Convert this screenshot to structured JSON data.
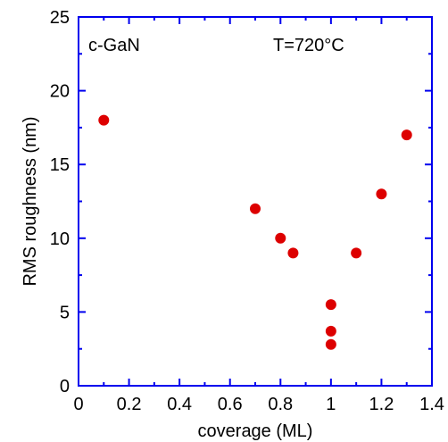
{
  "chart_data": {
    "type": "scatter",
    "title": "",
    "xlabel": "coverage (ML)",
    "ylabel": "RMS roughness (nm)",
    "xlim": [
      0,
      1.4
    ],
    "ylim": [
      0,
      25
    ],
    "x_ticks": [
      0,
      0.2,
      0.4,
      0.6,
      0.8,
      1,
      1.2,
      1.4
    ],
    "x_tick_labels": [
      "0",
      "0.2",
      "0.4",
      "0.6",
      "0.8",
      "1",
      "1.2",
      "1.4"
    ],
    "y_ticks": [
      0,
      5,
      10,
      15,
      20,
      25
    ],
    "y_tick_labels": [
      "0",
      "5",
      "10",
      "15",
      "20",
      "25"
    ],
    "grid": false,
    "series": [
      {
        "points": [
          {
            "x": 0.1,
            "y": 18
          },
          {
            "x": 0.7,
            "y": 12
          },
          {
            "x": 0.8,
            "y": 10
          },
          {
            "x": 0.85,
            "y": 9
          },
          {
            "x": 1.0,
            "y": 5.5
          },
          {
            "x": 1.0,
            "y": 3.7
          },
          {
            "x": 1.0,
            "y": 2.8
          },
          {
            "x": 1.1,
            "y": 9
          },
          {
            "x": 1.2,
            "y": 13
          },
          {
            "x": 1.3,
            "y": 17
          }
        ],
        "color": "#dd0000"
      }
    ],
    "annotations": {
      "sample": "c-GaN",
      "temperature": "T=720°C"
    },
    "colors": {
      "frame": "#0000ee",
      "marker": "#dd0000"
    }
  }
}
